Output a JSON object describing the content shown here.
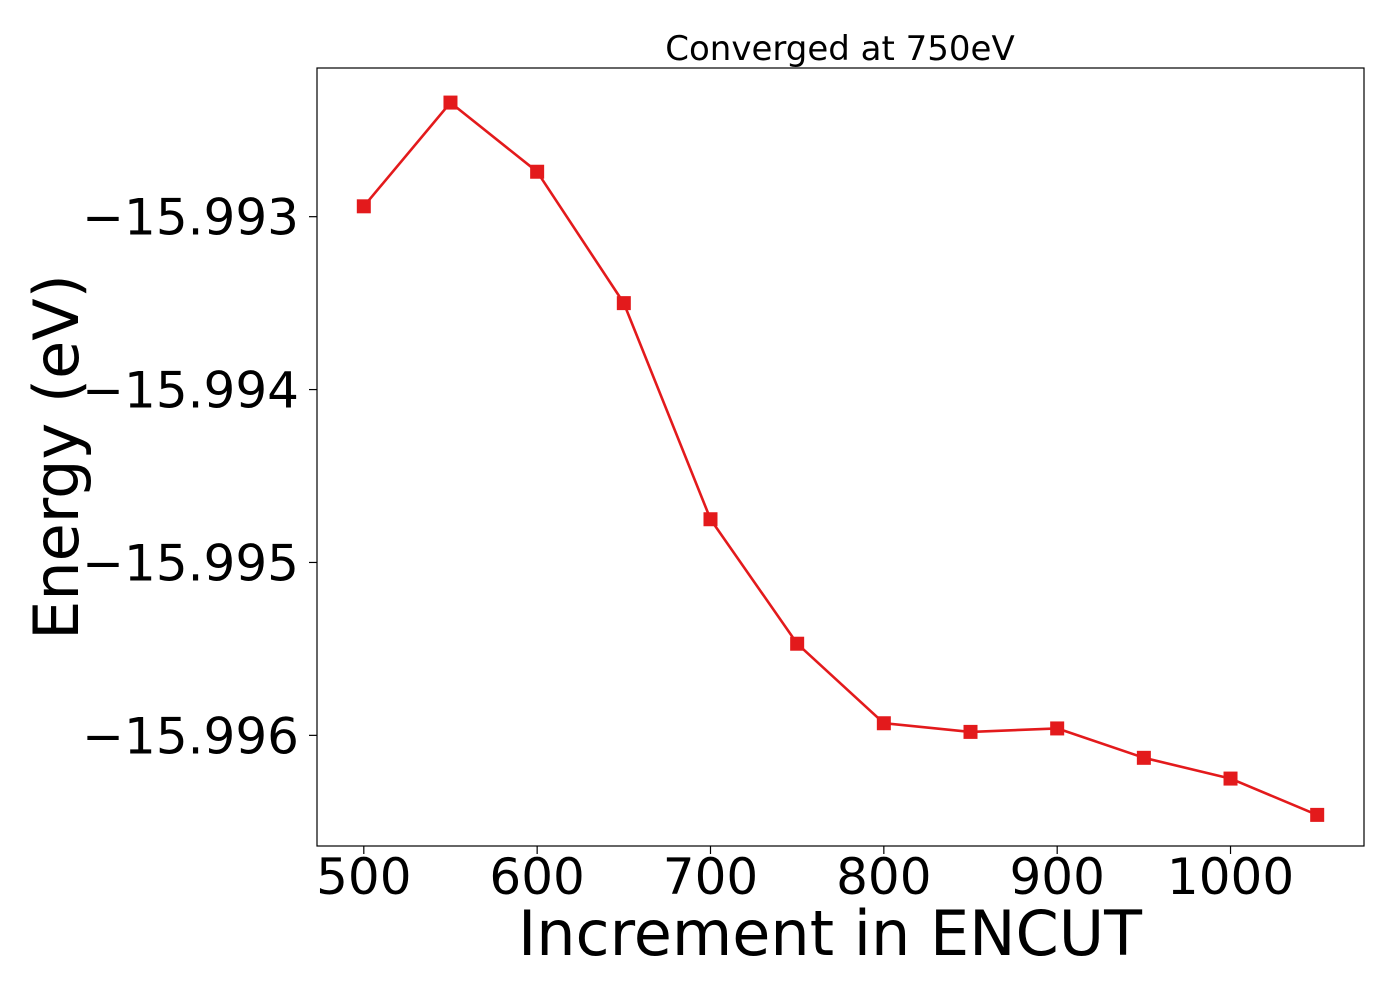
{
  "chart_data": {
    "type": "line",
    "title": "Converged at 750eV",
    "xlabel": "Increment in ENCUT",
    "ylabel": "Energy (eV)",
    "x_ticks": [
      500,
      600,
      700,
      800,
      900,
      1000
    ],
    "x_tick_labels": [
      "500",
      "600",
      "700",
      "800",
      "900",
      "1000"
    ],
    "y_ticks": [
      -15.993,
      -15.994,
      -15.995,
      -15.996
    ],
    "y_tick_labels": [
      "−15.993",
      "−15.994",
      "−15.995",
      "−15.996"
    ],
    "xlim": [
      473,
      1077
    ],
    "ylim": [
      -15.99664,
      -15.99214
    ],
    "grid": false,
    "series": [
      {
        "color": "#e31a1c",
        "marker": "square",
        "x": [
          500,
          550,
          600,
          650,
          700,
          750,
          800,
          850,
          900,
          950,
          1000,
          1050
        ],
        "y": [
          -15.99294,
          -15.99234,
          -15.99274,
          -15.9935,
          -15.99475,
          -15.99547,
          -15.99593,
          -15.99598,
          -15.99596,
          -15.99613,
          -15.99625,
          -15.99646
        ]
      }
    ]
  }
}
